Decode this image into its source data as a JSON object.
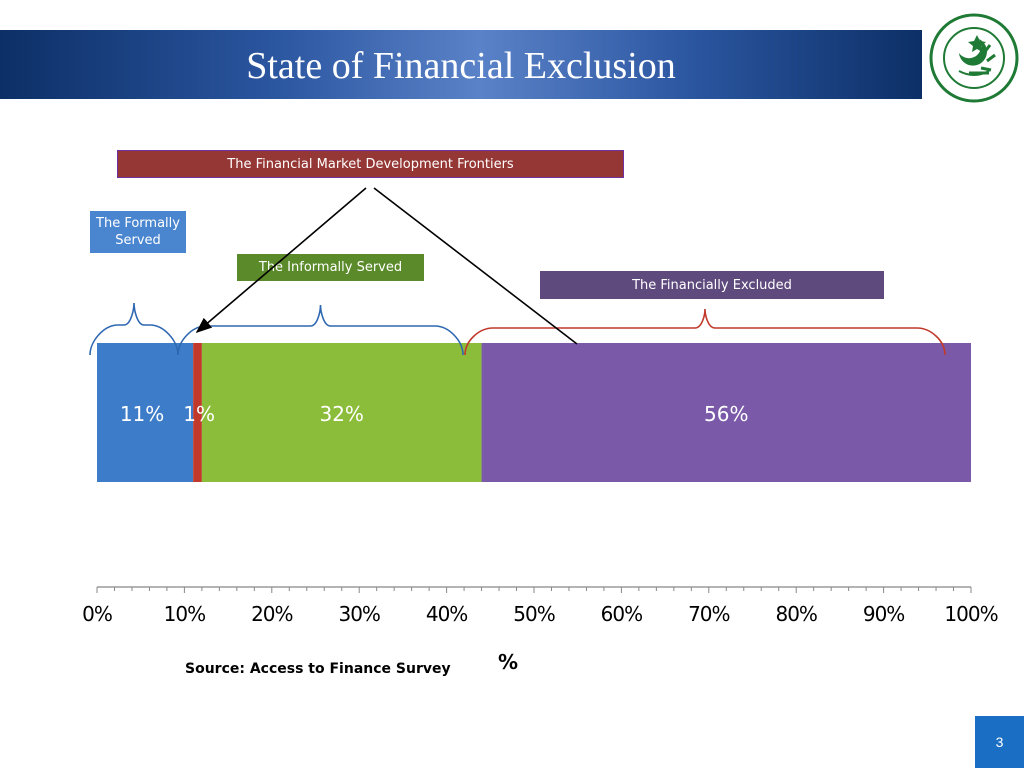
{
  "slide": {
    "title": "State of Financial Exclusion",
    "page_number": "3",
    "source": "Source: Access to Finance Survey"
  },
  "logo": {
    "name": "State Bank of Pakistan seal",
    "icon": "sbp-logo"
  },
  "annotations": {
    "frontiers": "The Financial Market Development Frontiers",
    "formally_served": "The Formally Served",
    "informally_served": "The Informally Served",
    "financially_excluded": "The Financially Excluded"
  },
  "colors": {
    "formal": "#3d7cc9",
    "frontier": "#c0392b",
    "informal": "#8bbd3a",
    "excluded": "#7a5aa8",
    "brace_blue": "#2e67b1",
    "brace_red": "#c0392b"
  },
  "chart_data": {
    "type": "bar",
    "orientation": "horizontal-stacked",
    "xlabel": "%",
    "xlim": [
      0,
      100
    ],
    "x_ticks": [
      "0%",
      "10%",
      "20%",
      "30%",
      "40%",
      "50%",
      "60%",
      "70%",
      "80%",
      "90%",
      "100%"
    ],
    "series": [
      {
        "key": "formal",
        "values": [
          11
        ],
        "label": "11%"
      },
      {
        "key": "frontier",
        "values": [
          1
        ],
        "label": "1%"
      },
      {
        "key": "informal",
        "values": [
          32
        ],
        "label": "32%"
      },
      {
        "key": "excluded",
        "values": [
          56
        ],
        "label": "56%"
      }
    ]
  }
}
